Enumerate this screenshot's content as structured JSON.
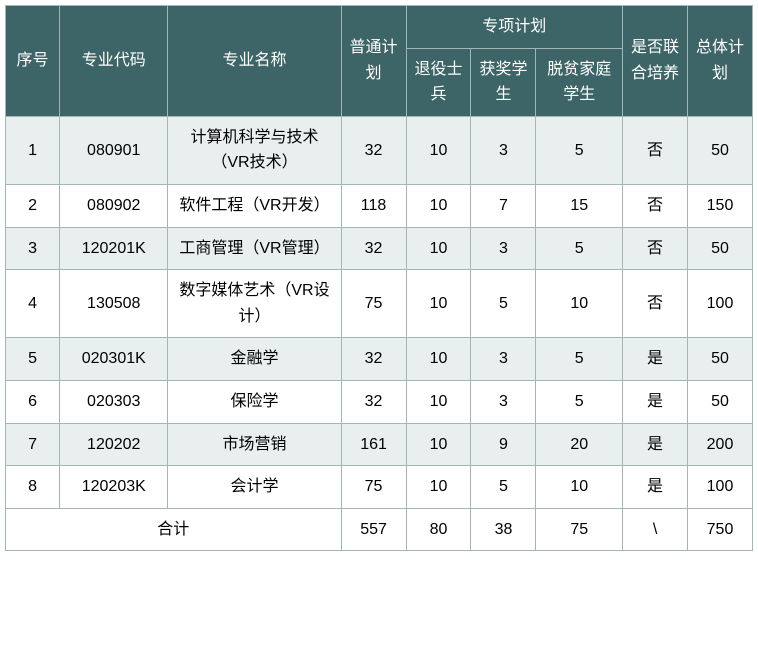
{
  "header_bg": "#3d6466",
  "header_fg": "#ffffff",
  "alt_row_bg": "#e9eeee",
  "border_color": "#a3b6b6",
  "headers": {
    "seq": "序号",
    "code": "专业代码",
    "name": "专业名称",
    "plan": "普通计划",
    "special_group": "专项计划",
    "sp1": "退役士兵",
    "sp2": "获奖学生",
    "sp3": "脱贫家庭学生",
    "joint": "是否联合培养",
    "total": "总体计划"
  },
  "rows": [
    {
      "seq": "1",
      "code": "080901",
      "name": "计算机科学与技术（VR技术）",
      "plan": "32",
      "sp1": "10",
      "sp2": "3",
      "sp3": "5",
      "joint": "否",
      "total": "50"
    },
    {
      "seq": "2",
      "code": "080902",
      "name": "软件工程（VR开发）",
      "plan": "118",
      "sp1": "10",
      "sp2": "7",
      "sp3": "15",
      "joint": "否",
      "total": "150"
    },
    {
      "seq": "3",
      "code": "120201K",
      "name": "工商管理（VR管理）",
      "plan": "32",
      "sp1": "10",
      "sp2": "3",
      "sp3": "5",
      "joint": "否",
      "total": "50"
    },
    {
      "seq": "4",
      "code": "130508",
      "name": "数字媒体艺术（VR设计）",
      "plan": "75",
      "sp1": "10",
      "sp2": "5",
      "sp3": "10",
      "joint": "否",
      "total": "100"
    },
    {
      "seq": "5",
      "code": "020301K",
      "name": "金融学",
      "plan": "32",
      "sp1": "10",
      "sp2": "3",
      "sp3": "5",
      "joint": "是",
      "total": "50"
    },
    {
      "seq": "6",
      "code": "020303",
      "name": "保险学",
      "plan": "32",
      "sp1": "10",
      "sp2": "3",
      "sp3": "5",
      "joint": "是",
      "total": "50"
    },
    {
      "seq": "7",
      "code": "120202",
      "name": "市场营销",
      "plan": "161",
      "sp1": "10",
      "sp2": "9",
      "sp3": "20",
      "joint": "是",
      "total": "200"
    },
    {
      "seq": "8",
      "code": "120203K",
      "name": "会计学",
      "plan": "75",
      "sp1": "10",
      "sp2": "5",
      "sp3": "10",
      "joint": "是",
      "total": "100"
    }
  ],
  "total_row": {
    "label": "合计",
    "plan": "557",
    "sp1": "80",
    "sp2": "38",
    "sp3": "75",
    "joint": "\\",
    "total": "750"
  }
}
